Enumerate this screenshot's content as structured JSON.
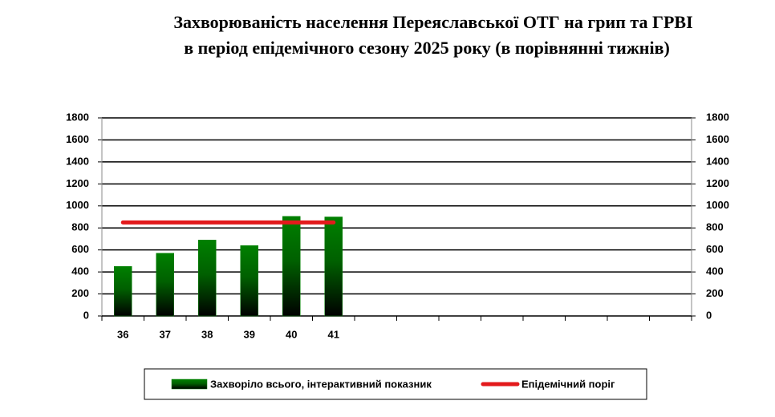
{
  "chart_data": {
    "type": "bar",
    "title": "Захворюваність населення Переяславської ОТГ на грип та ГРВІ",
    "subtitle": "в період епідемічного сезону 2025 року (в порівнянні тижнів)",
    "categories": [
      "36",
      "37",
      "38",
      "39",
      "40",
      "41",
      null,
      null,
      null,
      null,
      null,
      null,
      null,
      null
    ],
    "series": [
      {
        "name": "Захворіло всього, інтерактивний показник",
        "type": "bar",
        "color": "#008000",
        "values": [
          450,
          570,
          690,
          640,
          905,
          900,
          null,
          null,
          null,
          null,
          null,
          null,
          null,
          null
        ]
      },
      {
        "name": "Епідемічний поріг",
        "type": "line",
        "color": "#e31a1c",
        "values": [
          850,
          850,
          850,
          850,
          850,
          850,
          null,
          null,
          null,
          null,
          null,
          null,
          null,
          null
        ]
      }
    ],
    "ylim": [
      0,
      1800
    ],
    "yticks": [
      0,
      200,
      400,
      600,
      800,
      1000,
      1200,
      1400,
      1600,
      1800
    ],
    "y2lim": [
      0,
      1800
    ],
    "y2ticks": [
      0,
      200,
      400,
      600,
      800,
      1000,
      1200,
      1400,
      1600,
      1800
    ],
    "grid": true,
    "legend": "bottom"
  }
}
